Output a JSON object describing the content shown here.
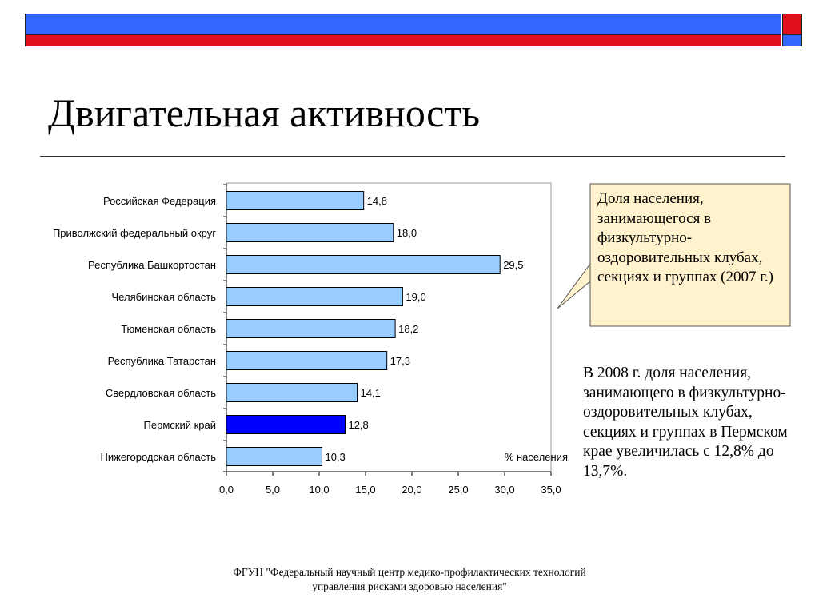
{
  "slide": {
    "title": "Двигательная активность",
    "colors": {
      "header_blue": "#3366ff",
      "header_red": "#e0101a"
    }
  },
  "callout": {
    "text": "Доля населения, занимающегося в физкультурно-оздоровительных клубах, секциях и группах (2007 г.)",
    "background": "#fff2cc"
  },
  "note": {
    "text": "В 2008 г. доля населения, занимающего в физкультурно-оздоровительных клубах, секциях и группах в Пермском крае увеличилась с 12,8% до 13,7%."
  },
  "footer": {
    "line1": "ФГУН \"Федеральный научный центр медико-профилактических технологий",
    "line2": "управления рисками здоровью населения\""
  },
  "chart_data": {
    "type": "bar",
    "orientation": "horizontal",
    "categories": [
      "Российская Федерация",
      "Приволжский федеральный округ",
      "Республика Башкортостан",
      "Челябинская область",
      "Тюменская область",
      "Республика Татарстан",
      "Свердловская область",
      "Пермский край",
      "Нижегородская область"
    ],
    "values": [
      14.8,
      18.0,
      29.5,
      19.0,
      18.2,
      17.3,
      14.1,
      12.8,
      10.3
    ],
    "value_labels": [
      "14,8",
      "18,0",
      "29,5",
      "19,0",
      "18,2",
      "17,3",
      "14,1",
      "12,8",
      "10,3"
    ],
    "highlight_category": "Пермский край",
    "bar_color": "#99ccff",
    "highlight_color": "#0000ff",
    "xlim": [
      0,
      35
    ],
    "xticks": [
      0,
      5,
      10,
      15,
      20,
      25,
      30,
      35
    ],
    "xtick_labels": [
      "0,0",
      "5,0",
      "10,0",
      "15,0",
      "20,0",
      "25,0",
      "30,0",
      "35,0"
    ],
    "unit_label": "% населения",
    "grid": false
  }
}
